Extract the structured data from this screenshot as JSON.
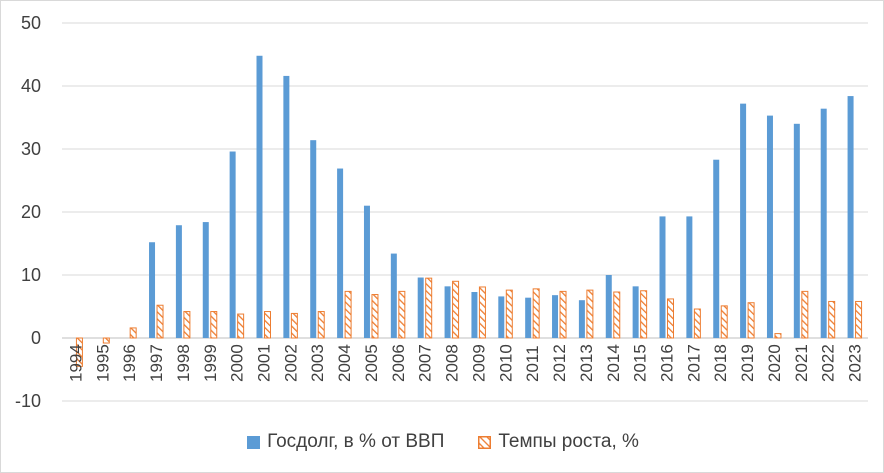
{
  "chart_data": {
    "type": "bar",
    "title": "",
    "xlabel": "",
    "ylabel": "",
    "ylim": [
      -10,
      50
    ],
    "yticks": [
      -10,
      0,
      10,
      20,
      30,
      40,
      50
    ],
    "grid": true,
    "legend_position": "bottom",
    "categories": [
      "1994",
      "1995",
      "1996",
      "1997",
      "1998",
      "1999",
      "2000",
      "2001",
      "2002",
      "2003",
      "2004",
      "2005",
      "2006",
      "2007",
      "2008",
      "2009",
      "2010",
      "2011",
      "2012",
      "2013",
      "2014",
      "2015",
      "2016",
      "2017",
      "2018",
      "2019",
      "2020",
      "2021",
      "2022",
      "2023"
    ],
    "series": [
      {
        "name": "Госдолг, в % от ВВП",
        "color": "#5b9bd5",
        "pattern": "solid",
        "values": [
          0,
          0,
          0,
          15.2,
          17.9,
          18.4,
          29.6,
          44.8,
          41.6,
          31.4,
          26.9,
          21.0,
          13.4,
          9.6,
          8.2,
          7.3,
          6.6,
          6.4,
          6.8,
          6.0,
          10.0,
          8.2,
          19.3,
          19.3,
          28.3,
          37.2,
          35.3,
          34.0,
          36.4,
          38.4
        ]
      },
      {
        "name": "Темпы роста, %",
        "color": "#ed7d31",
        "pattern": "hatched",
        "values": [
          -4.5,
          -0.8,
          1.6,
          5.2,
          4.2,
          4.2,
          3.8,
          4.2,
          3.9,
          4.2,
          7.4,
          6.9,
          7.4,
          9.5,
          9.0,
          8.1,
          7.6,
          7.8,
          7.4,
          7.6,
          7.3,
          7.5,
          6.2,
          4.6,
          5.1,
          5.6,
          0.7,
          7.4,
          5.8,
          5.8
        ]
      }
    ]
  }
}
